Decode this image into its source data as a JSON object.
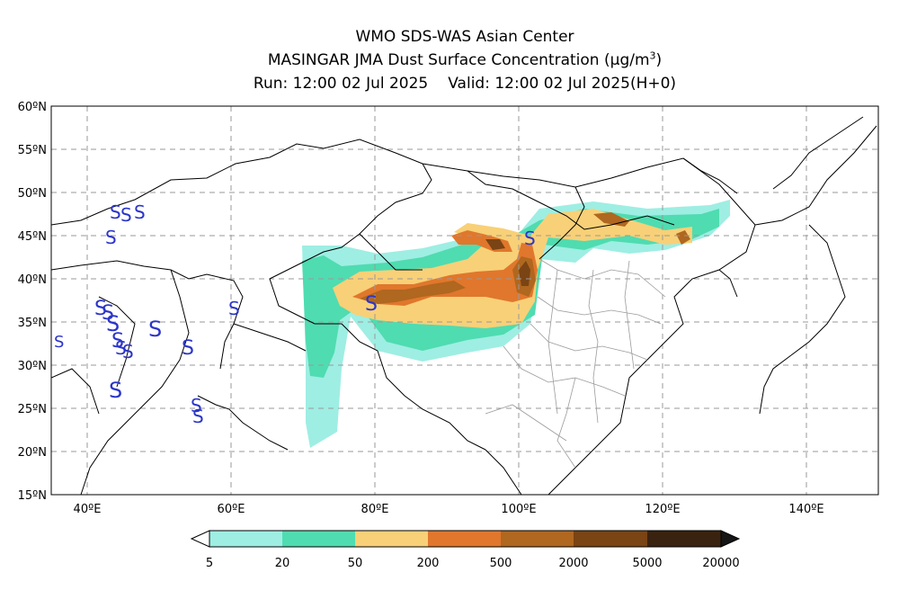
{
  "title": {
    "line1": "WMO SDS-WAS Asian Center",
    "line2_text": "MASINGAR JMA Dust Surface Concentration (",
    "line2_unit": "μg/m",
    "line2_sup": "3",
    "line2_close": ")",
    "run_label": "Run: 12:00 02 Jul 2025",
    "valid_label": "Valid: 12:00 02 Jul 2025(H+0)"
  },
  "map": {
    "lon_range": [
      35,
      150
    ],
    "lat_range": [
      15,
      60
    ],
    "lat_ticks": [
      "60ºN",
      "55ºN",
      "50ºN",
      "45ºN",
      "40ºN",
      "35ºN",
      "30ºN",
      "25ºN",
      "20ºN",
      "15ºN"
    ],
    "lon_ticks": [
      "40ºE",
      "60ºE",
      "80ºE",
      "100ºE",
      "120ºE",
      "140ºE"
    ],
    "grid": "dashed",
    "station_symbol": "S",
    "station_color": "#2b35c9"
  },
  "colorbar": {
    "labels": [
      "5",
      "20",
      "50",
      "200",
      "500",
      "2000",
      "5000",
      "20000"
    ],
    "colors": [
      "#ffffff",
      "#9eeee3",
      "#4fdcb0",
      "#f8d077",
      "#e0772c",
      "#b0671f",
      "#7a4414",
      "#3a2210",
      "#151515"
    ]
  }
}
